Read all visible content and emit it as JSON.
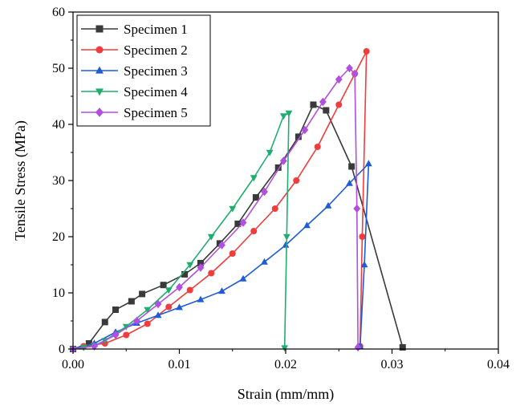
{
  "chart_data": {
    "type": "line",
    "xlabel": "Strain (mm/mm)",
    "ylabel": "Tensile Stress (MPa)",
    "xlim": [
      0.0,
      0.04
    ],
    "ylim": [
      0,
      60
    ],
    "xticks": [
      0.0,
      0.01,
      0.02,
      0.03,
      0.04
    ],
    "xtick_labels": [
      "0.00",
      "0.01",
      "0.02",
      "0.03",
      "0.04"
    ],
    "yticks": [
      0,
      10,
      20,
      30,
      40,
      50,
      60
    ],
    "ytick_labels": [
      "0",
      "10",
      "20",
      "30",
      "40",
      "50",
      "60"
    ],
    "legend_position": "top-left",
    "grid": false,
    "series": [
      {
        "name": "Specimen 1",
        "color": "#3a3a3a",
        "marker": "square",
        "points": [
          [
            0.0,
            0.0
          ],
          [
            0.0015,
            1.0
          ],
          [
            0.003,
            4.8
          ],
          [
            0.004,
            7.0
          ],
          [
            0.0055,
            8.5
          ],
          [
            0.0065,
            9.8
          ],
          [
            0.0085,
            11.4
          ],
          [
            0.0105,
            13.3
          ],
          [
            0.012,
            15.3
          ],
          [
            0.0138,
            18.8
          ],
          [
            0.0155,
            22.3
          ],
          [
            0.0172,
            27.0
          ],
          [
            0.0193,
            32.3
          ],
          [
            0.0212,
            37.8
          ],
          [
            0.0226,
            43.5
          ],
          [
            0.0238,
            42.5
          ],
          [
            0.0262,
            32.5
          ],
          [
            0.031,
            0.3
          ]
        ]
      },
      {
        "name": "Specimen 2",
        "color": "#f03c3c",
        "marker": "circle",
        "points": [
          [
            0.0,
            0.0
          ],
          [
            0.001,
            0.5
          ],
          [
            0.003,
            1.0
          ],
          [
            0.005,
            2.5
          ],
          [
            0.007,
            4.5
          ],
          [
            0.009,
            7.5
          ],
          [
            0.011,
            10.5
          ],
          [
            0.013,
            13.5
          ],
          [
            0.015,
            17.0
          ],
          [
            0.017,
            21.0
          ],
          [
            0.019,
            25.0
          ],
          [
            0.021,
            30.0
          ],
          [
            0.023,
            36.0
          ],
          [
            0.025,
            43.5
          ],
          [
            0.0265,
            49.0
          ],
          [
            0.0276,
            53.0
          ],
          [
            0.0272,
            20.0
          ],
          [
            0.027,
            0.5
          ]
        ]
      },
      {
        "name": "Specimen 3",
        "color": "#1f5bd6",
        "marker": "triangle-up",
        "points": [
          [
            0.0,
            0.0
          ],
          [
            0.002,
            1.0
          ],
          [
            0.004,
            3.0
          ],
          [
            0.006,
            4.6
          ],
          [
            0.008,
            6.0
          ],
          [
            0.01,
            7.4
          ],
          [
            0.012,
            8.8
          ],
          [
            0.014,
            10.3
          ],
          [
            0.016,
            12.5
          ],
          [
            0.018,
            15.5
          ],
          [
            0.02,
            18.5
          ],
          [
            0.022,
            22.0
          ],
          [
            0.024,
            25.5
          ],
          [
            0.026,
            29.5
          ],
          [
            0.0278,
            33.0
          ],
          [
            0.0274,
            15.0
          ],
          [
            0.027,
            0.5
          ]
        ]
      },
      {
        "name": "Specimen 4",
        "color": "#1fae6e",
        "marker": "triangle-down",
        "points": [
          [
            0.0,
            0.0
          ],
          [
            0.001,
            0.3
          ],
          [
            0.002,
            0.6
          ],
          [
            0.003,
            1.5
          ],
          [
            0.005,
            4.0
          ],
          [
            0.007,
            7.0
          ],
          [
            0.009,
            10.5
          ],
          [
            0.011,
            15.0
          ],
          [
            0.013,
            20.0
          ],
          [
            0.015,
            25.0
          ],
          [
            0.017,
            30.5
          ],
          [
            0.0185,
            35.0
          ],
          [
            0.0198,
            41.5
          ],
          [
            0.0203,
            42.0
          ],
          [
            0.0201,
            20.0
          ],
          [
            0.0199,
            0.2
          ]
        ]
      },
      {
        "name": "Specimen 5",
        "color": "#b04fe0",
        "marker": "diamond",
        "points": [
          [
            0.0,
            0.0
          ],
          [
            0.002,
            0.5
          ],
          [
            0.004,
            2.5
          ],
          [
            0.006,
            5.0
          ],
          [
            0.008,
            8.0
          ],
          [
            0.01,
            11.0
          ],
          [
            0.012,
            14.5
          ],
          [
            0.014,
            18.5
          ],
          [
            0.016,
            22.5
          ],
          [
            0.018,
            28.0
          ],
          [
            0.0198,
            33.5
          ],
          [
            0.0218,
            39.0
          ],
          [
            0.0235,
            44.0
          ],
          [
            0.025,
            48.0
          ],
          [
            0.026,
            50.0
          ],
          [
            0.0265,
            49.0
          ],
          [
            0.0267,
            25.0
          ],
          [
            0.0268,
            0.3
          ]
        ]
      }
    ]
  }
}
